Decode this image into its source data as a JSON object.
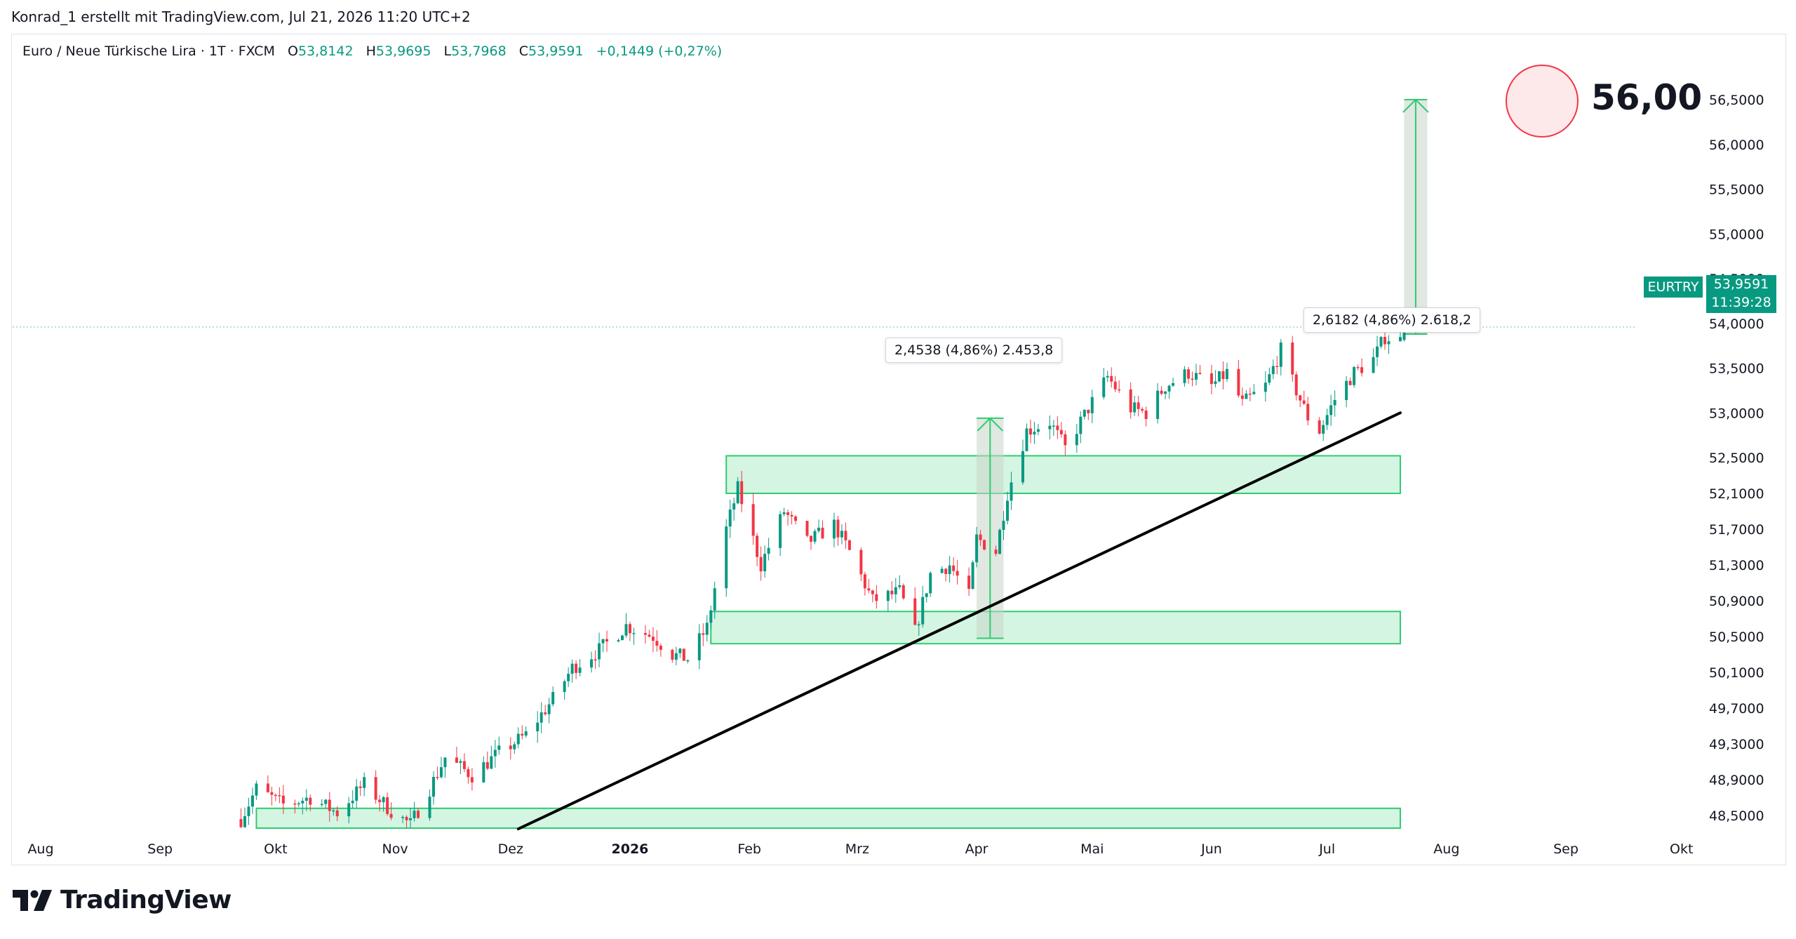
{
  "header": {
    "author_line": "Konrad_1 erstellt mit TradingView.com, Jul 21, 2026 11:20 UTC+2"
  },
  "legend": {
    "symbol": "Euro  / Neue Türkische Lira · 1T · FXCM",
    "open_label": "O",
    "open": "53,8142",
    "high_label": "H",
    "high": "53,9695",
    "low_label": "L",
    "low": "53,7968",
    "close_label": "C",
    "close": "53,9591",
    "change": "+0,1449 (+0,27%)"
  },
  "price_badge": {
    "ticker": "EURTRY",
    "price": "53,9591",
    "countdown": "11:39:28"
  },
  "annotations": {
    "target": "56,00",
    "measure_1": "2,4538 (4,86%) 2.453,8",
    "measure_2": "2,6182 (4,86%) 2.618,2"
  },
  "brand": {
    "name": "TradingView"
  },
  "colors": {
    "up": "#089981",
    "down": "#f23645",
    "zone_fill": "#d4f5e2",
    "zone_stroke": "#2ecc71",
    "trendline": "#000000",
    "background": "#ffffff"
  },
  "chart_data": {
    "type": "candlestick",
    "interval": "1T",
    "y_axis_ticks": [
      "56,5000",
      "56,0000",
      "55,5000",
      "55,0000",
      "54,5000",
      "54,0000",
      "53,5000",
      "53,0000",
      "52,5000",
      "52,1000",
      "51,7000",
      "51,3000",
      "50,9000",
      "50,5000",
      "50,1000",
      "49,7000",
      "49,3000",
      "48,9000",
      "48,5000"
    ],
    "x_axis_ticks": [
      "Aug",
      "Sep",
      "Okt",
      "Nov",
      "Dez",
      "2026",
      "Feb",
      "Mrz",
      "Apr",
      "Mai",
      "Jun",
      "Jul",
      "Aug",
      "Sep",
      "Okt"
    ],
    "candles_from": "2025-09-22",
    "candles_to": "2026-07-21",
    "close_anchors": [
      {
        "date": "2025-09-22",
        "close": 48.46
      },
      {
        "date": "2025-09-26",
        "close": 48.8
      },
      {
        "date": "2025-10-03",
        "close": 48.62
      },
      {
        "date": "2025-10-10",
        "close": 48.7
      },
      {
        "date": "2025-10-17",
        "close": 48.53
      },
      {
        "date": "2025-10-24",
        "close": 48.85
      },
      {
        "date": "2025-10-31",
        "close": 48.55
      },
      {
        "date": "2025-11-05",
        "close": 48.4
      },
      {
        "date": "2025-11-10",
        "close": 48.8
      },
      {
        "date": "2025-11-14",
        "close": 49.15
      },
      {
        "date": "2025-11-21",
        "close": 48.95
      },
      {
        "date": "2025-11-28",
        "close": 49.2
      },
      {
        "date": "2025-12-05",
        "close": 49.4
      },
      {
        "date": "2025-12-12",
        "close": 49.8
      },
      {
        "date": "2025-12-17",
        "close": 50.15
      },
      {
        "date": "2025-12-24",
        "close": 50.35
      },
      {
        "date": "2025-12-31",
        "close": 50.62
      },
      {
        "date": "2026-01-07",
        "close": 50.5
      },
      {
        "date": "2026-01-12",
        "close": 50.3
      },
      {
        "date": "2026-01-16",
        "close": 50.25
      },
      {
        "date": "2026-01-21",
        "close": 50.6
      },
      {
        "date": "2026-01-26",
        "close": 51.7
      },
      {
        "date": "2026-01-29",
        "close": 52.15
      },
      {
        "date": "2026-02-04",
        "close": 51.3
      },
      {
        "date": "2026-02-10",
        "close": 51.9
      },
      {
        "date": "2026-02-16",
        "close": 51.55
      },
      {
        "date": "2026-02-23",
        "close": 51.75
      },
      {
        "date": "2026-02-27",
        "close": 51.45
      },
      {
        "date": "2026-03-05",
        "close": 50.9
      },
      {
        "date": "2026-03-12",
        "close": 51.0
      },
      {
        "date": "2026-03-16",
        "close": 50.55
      },
      {
        "date": "2026-03-20",
        "close": 51.2
      },
      {
        "date": "2026-03-25",
        "close": 51.3
      },
      {
        "date": "2026-03-30",
        "close": 50.95
      },
      {
        "date": "2026-04-01",
        "close": 51.6
      },
      {
        "date": "2026-04-06",
        "close": 51.45
      },
      {
        "date": "2026-04-09",
        "close": 52.1
      },
      {
        "date": "2026-04-14",
        "close": 52.8
      },
      {
        "date": "2026-04-20",
        "close": 52.9
      },
      {
        "date": "2026-04-24",
        "close": 52.6
      },
      {
        "date": "2026-04-30",
        "close": 53.05
      },
      {
        "date": "2026-05-05",
        "close": 53.4
      },
      {
        "date": "2026-05-11",
        "close": 53.05
      },
      {
        "date": "2026-05-15",
        "close": 53.0
      },
      {
        "date": "2026-05-20",
        "close": 53.3
      },
      {
        "date": "2026-05-26",
        "close": 53.45
      },
      {
        "date": "2026-06-01",
        "close": 53.3
      },
      {
        "date": "2026-06-05",
        "close": 53.45
      },
      {
        "date": "2026-06-09",
        "close": 53.1
      },
      {
        "date": "2026-06-15",
        "close": 53.3
      },
      {
        "date": "2026-06-19",
        "close": 53.7
      },
      {
        "date": "2026-06-22",
        "close": 53.35
      },
      {
        "date": "2026-06-26",
        "close": 52.95
      },
      {
        "date": "2026-06-29",
        "close": 52.8
      },
      {
        "date": "2026-07-03",
        "close": 53.15
      },
      {
        "date": "2026-07-08",
        "close": 53.45
      },
      {
        "date": "2026-07-13",
        "close": 53.6
      },
      {
        "date": "2026-07-16",
        "close": 53.85
      },
      {
        "date": "2026-07-20",
        "close": 53.81
      },
      {
        "date": "2026-07-21",
        "close": 53.9591
      }
    ],
    "last_candle": {
      "open": 53.8142,
      "high": 53.9695,
      "low": 53.7968,
      "close": 53.9591
    },
    "demand_zones": [
      {
        "from": "2026-01-26",
        "to": "2026-07-20",
        "low": 52.1,
        "high": 52.52
      },
      {
        "from": "2026-01-22",
        "to": "2026-07-20",
        "low": 50.42,
        "high": 50.78
      },
      {
        "from": "2025-09-26",
        "to": "2026-07-20",
        "low": 48.3,
        "high": 48.58
      }
    ],
    "trendline": [
      {
        "date": "2025-12-03",
        "price": 48.35
      },
      {
        "date": "2026-07-20",
        "price": 53.0
      }
    ],
    "measurements": [
      {
        "from": "2026-04-01",
        "to": "2026-04-08",
        "start": 50.48,
        "end": 52.94
      },
      {
        "from": "2026-07-21",
        "to": "2026-07-27",
        "start": 53.88,
        "end": 56.5
      }
    ],
    "target_price": 56.0
  }
}
